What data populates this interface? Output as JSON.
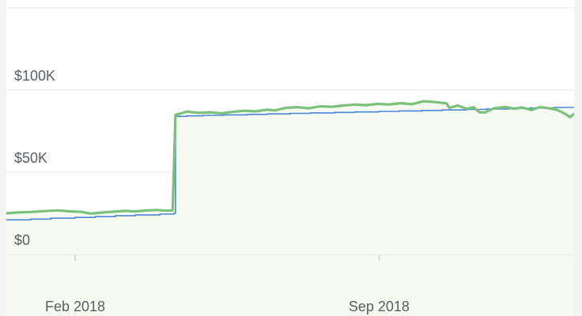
{
  "chart_data": {
    "type": "line",
    "title": "",
    "xlabel": "",
    "ylabel": "",
    "x_ticks": [
      {
        "label": "Feb 2018",
        "date": "2018-02-01"
      },
      {
        "label": "Sep 2018",
        "date": "2018-09-01"
      }
    ],
    "y_ticks": [
      {
        "label": "$0",
        "value": 0
      },
      {
        "label": "$50K",
        "value": 50000
      },
      {
        "label": "$100K",
        "value": 100000
      }
    ],
    "xlim": [
      "2017-12-15",
      "2019-01-15"
    ],
    "ylim": [
      0,
      150000
    ],
    "grid": true,
    "colors": {
      "market_value": "#79c27a",
      "contributions": "#4a86d8",
      "area_fill": "#f6faf0",
      "grid": "#e9eaec",
      "axis": "#c9ccd1"
    },
    "series": [
      {
        "key": "contributions",
        "style": "step",
        "points": [
          [
            "2017-12-15",
            21000
          ],
          [
            "2018-01-01",
            21500
          ],
          [
            "2018-01-15",
            22000
          ],
          [
            "2018-02-01",
            22500
          ],
          [
            "2018-02-15",
            23000
          ],
          [
            "2018-03-01",
            23500
          ],
          [
            "2018-03-15",
            24000
          ],
          [
            "2018-04-01",
            24500
          ],
          [
            "2018-04-11",
            25000
          ],
          [
            "2018-04-12",
            84000
          ],
          [
            "2018-04-20",
            84300
          ],
          [
            "2018-05-01",
            84600
          ],
          [
            "2018-05-15",
            84900
          ],
          [
            "2018-06-01",
            85200
          ],
          [
            "2018-06-15",
            85500
          ],
          [
            "2018-07-01",
            85800
          ],
          [
            "2018-07-15",
            86100
          ],
          [
            "2018-08-01",
            86400
          ],
          [
            "2018-08-15",
            86700
          ],
          [
            "2018-09-01",
            87000
          ],
          [
            "2018-09-15",
            87300
          ],
          [
            "2018-10-01",
            87600
          ],
          [
            "2018-10-15",
            87900
          ],
          [
            "2018-11-01",
            88200
          ],
          [
            "2018-11-15",
            88500
          ],
          [
            "2018-12-01",
            88800
          ],
          [
            "2018-12-15",
            89100
          ],
          [
            "2019-01-01",
            89400
          ],
          [
            "2019-01-15",
            89600
          ]
        ]
      },
      {
        "key": "market_value",
        "style": "line",
        "points": [
          [
            "2017-12-15",
            25000
          ],
          [
            "2017-12-22",
            25500
          ],
          [
            "2018-01-01",
            25800
          ],
          [
            "2018-01-10",
            26300
          ],
          [
            "2018-01-20",
            26800
          ],
          [
            "2018-01-28",
            26200
          ],
          [
            "2018-02-05",
            25900
          ],
          [
            "2018-02-12",
            24800
          ],
          [
            "2018-02-20",
            25500
          ],
          [
            "2018-02-28",
            26000
          ],
          [
            "2018-03-08",
            26500
          ],
          [
            "2018-03-15",
            26100
          ],
          [
            "2018-03-22",
            26700
          ],
          [
            "2018-03-30",
            27000
          ],
          [
            "2018-04-06",
            26600
          ],
          [
            "2018-04-10",
            26800
          ],
          [
            "2018-04-12",
            85000
          ],
          [
            "2018-04-15",
            85600
          ],
          [
            "2018-04-20",
            86900
          ],
          [
            "2018-04-28",
            86100
          ],
          [
            "2018-05-06",
            86500
          ],
          [
            "2018-05-14",
            85800
          ],
          [
            "2018-05-22",
            86800
          ],
          [
            "2018-05-30",
            87400
          ],
          [
            "2018-06-07",
            87000
          ],
          [
            "2018-06-15",
            88100
          ],
          [
            "2018-06-20",
            87600
          ],
          [
            "2018-06-28",
            89200
          ],
          [
            "2018-07-06",
            89600
          ],
          [
            "2018-07-14",
            88900
          ],
          [
            "2018-07-22",
            90100
          ],
          [
            "2018-07-30",
            89800
          ],
          [
            "2018-08-07",
            90600
          ],
          [
            "2018-08-15",
            91200
          ],
          [
            "2018-08-23",
            90800
          ],
          [
            "2018-08-31",
            91600
          ],
          [
            "2018-09-08",
            91200
          ],
          [
            "2018-09-16",
            92000
          ],
          [
            "2018-09-24",
            91400
          ],
          [
            "2018-10-02",
            93200
          ],
          [
            "2018-10-10",
            92700
          ],
          [
            "2018-10-18",
            91900
          ],
          [
            "2018-10-20",
            89200
          ],
          [
            "2018-10-26",
            90600
          ],
          [
            "2018-11-01",
            88600
          ],
          [
            "2018-11-06",
            89500
          ],
          [
            "2018-11-10",
            86500
          ],
          [
            "2018-11-14",
            86400
          ],
          [
            "2018-11-20",
            88900
          ],
          [
            "2018-11-28",
            89700
          ],
          [
            "2018-12-04",
            88700
          ],
          [
            "2018-12-10",
            89400
          ],
          [
            "2018-12-16",
            87800
          ],
          [
            "2018-12-22",
            89600
          ],
          [
            "2018-12-28",
            89000
          ],
          [
            "2019-01-03",
            88000
          ],
          [
            "2019-01-09",
            85500
          ],
          [
            "2019-01-12",
            83500
          ],
          [
            "2019-01-15",
            85500
          ]
        ]
      }
    ]
  }
}
